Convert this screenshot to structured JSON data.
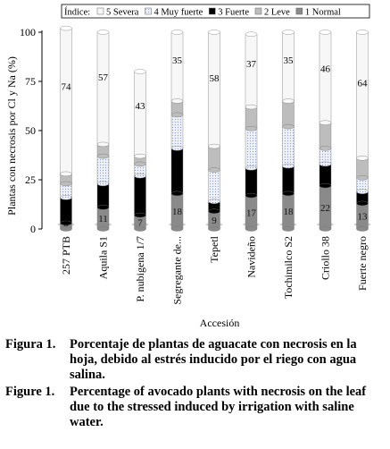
{
  "chart_data": {
    "type": "bar",
    "stacked": true,
    "style": "3d-cylinder",
    "ylabel": "Plantas con necrosis por Cl y Na (%)",
    "xlabel": "Accesión",
    "ylim": [
      0,
      100
    ],
    "yticks": [
      "0",
      "25",
      "50",
      "75",
      "100"
    ],
    "legend_title": "Índice:",
    "legend_position": "top",
    "categories": [
      "257 PTB",
      "Aquila S1",
      "P. nubigena 1/7",
      "Segregante de...",
      "Tepetl",
      "Navideño",
      "Tochimilco S2",
      "Criollo 38",
      "Fuerte negro"
    ],
    "series": [
      {
        "name": "1 Normal",
        "color": "#8a8a8a",
        "values": [
          3,
          11,
          7,
          18,
          9,
          17,
          18,
          22,
          13
        ]
      },
      {
        "name": "3 Fuerte",
        "color": "#000000",
        "values": [
          13,
          12,
          20,
          23,
          5,
          14,
          14,
          11,
          6
        ]
      },
      {
        "name": "4 Muy fuerte",
        "color": "#eceef6",
        "pattern": "dots",
        "values": [
          7,
          14,
          6,
          17,
          16,
          20,
          20,
          8,
          7
        ]
      },
      {
        "name": "2 Leve",
        "color": "#bdbdbd",
        "values": [
          5,
          6,
          4,
          7,
          12,
          11,
          13,
          13,
          10
        ]
      },
      {
        "name": "5 Severa",
        "color": "#f7f7f7",
        "values": [
          74,
          57,
          43,
          35,
          58,
          37,
          35,
          46,
          64
        ]
      }
    ],
    "data_labels": {
      "bottom_series": [
        3,
        11,
        7,
        18,
        9,
        17,
        18,
        22,
        13
      ],
      "top_series": [
        74,
        57,
        43,
        35,
        58,
        37,
        35,
        46,
        64
      ]
    },
    "legend_order": [
      "5 Severa",
      "4 Muy fuerte",
      "3 Fuerte",
      "2 Leve",
      "1 Normal"
    ]
  },
  "captions": [
    {
      "label": "Figura 1.",
      "text": "Porcentaje de plantas de aguacate con necrosis en la hoja, debido al estrés inducido por el riego con agua salina."
    },
    {
      "label": "Figure 1.",
      "text": "Percentage of avocado plants with necrosis on the leaf due to the stressed induced by irrigation with saline water."
    }
  ]
}
